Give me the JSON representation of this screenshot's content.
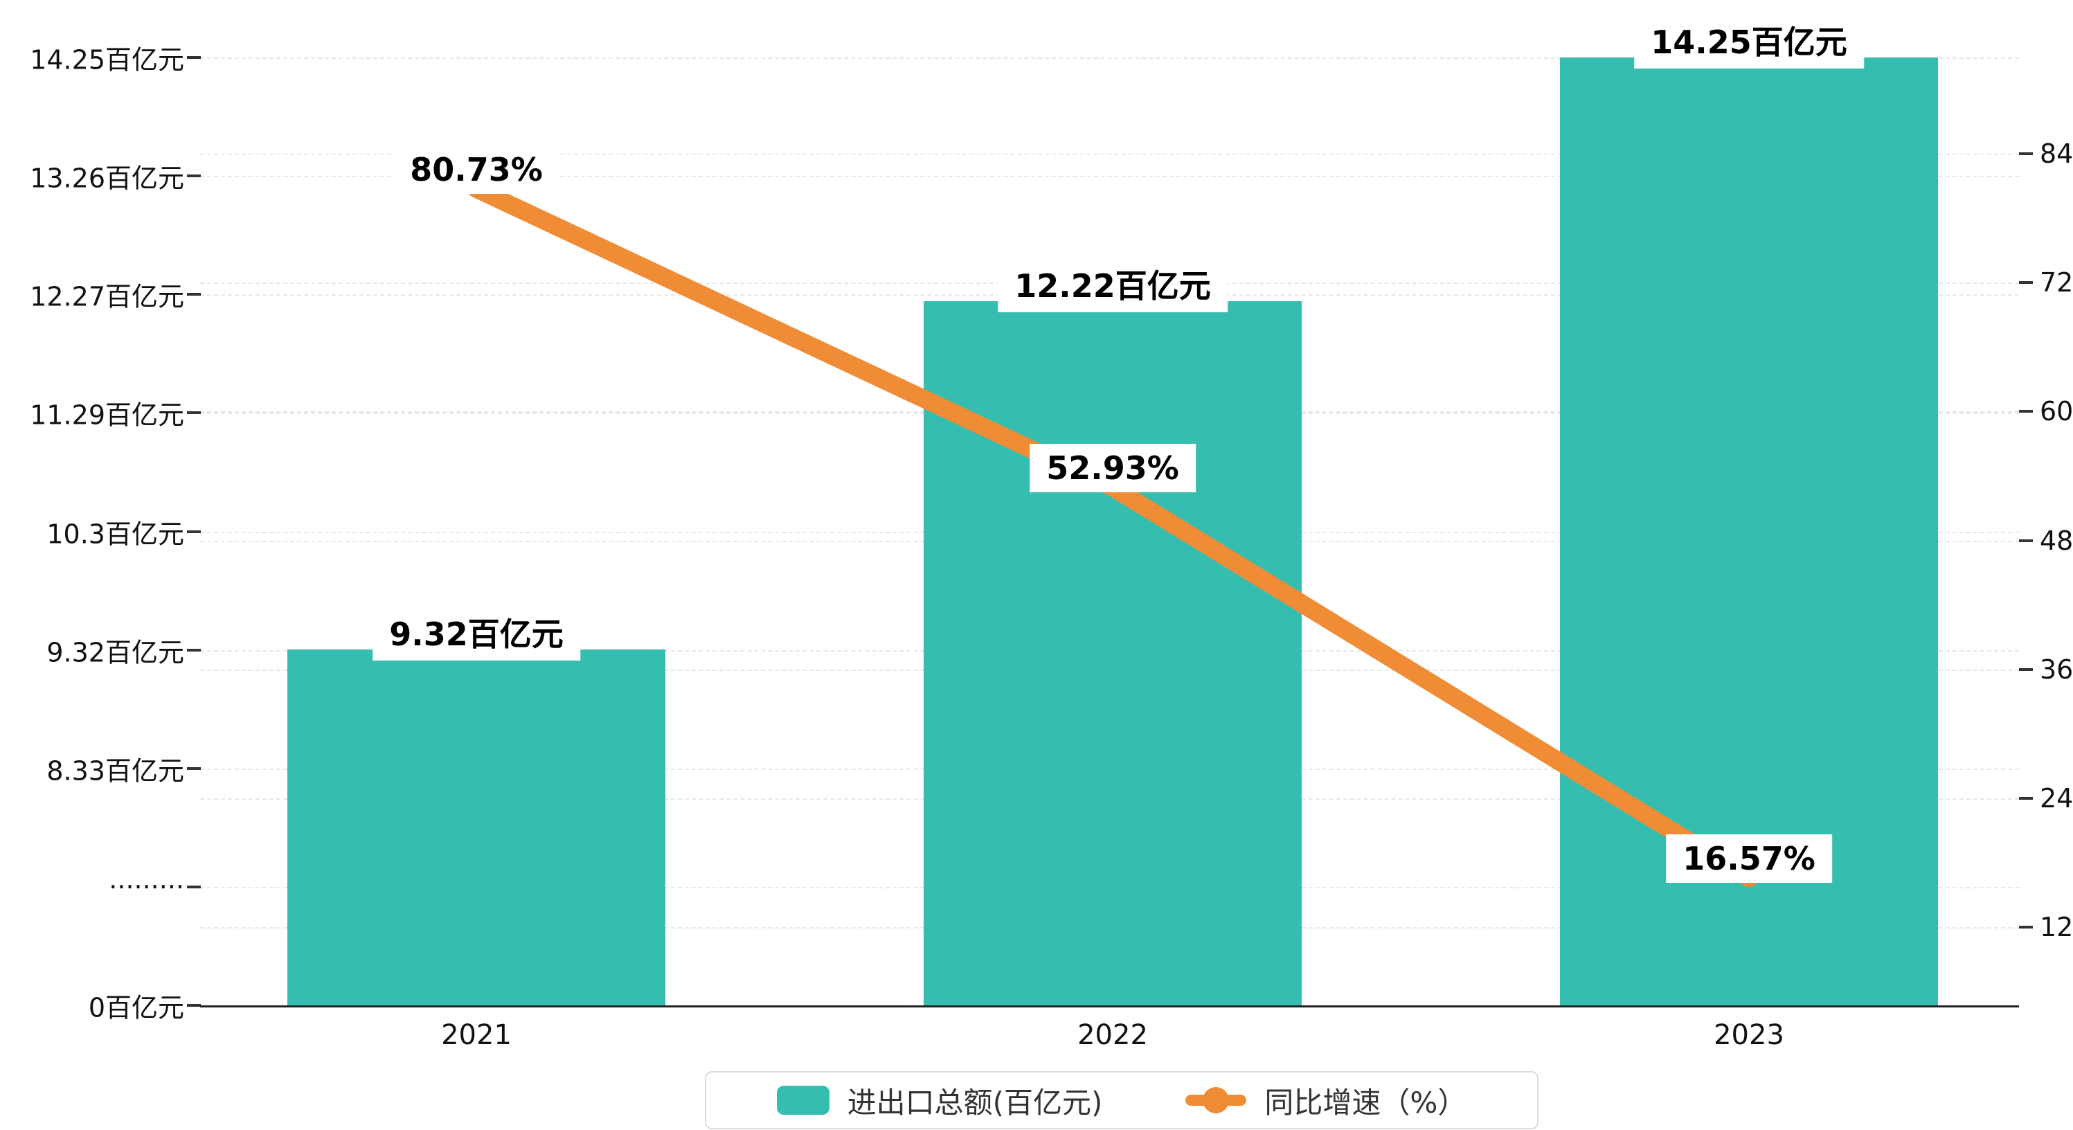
{
  "chart_data": {
    "type": "bar",
    "subtype": "bar-line-combo",
    "title": "",
    "categories": [
      "2021",
      "2022",
      "2023"
    ],
    "series": [
      {
        "name": "进出口总额(百亿元)",
        "type": "bar",
        "axis": "left",
        "color": "#35bdb0",
        "values": [
          9.32,
          12.22,
          14.25
        ],
        "data_labels": [
          "9.32百亿元",
          "12.22百亿元",
          "14.25百亿元"
        ]
      },
      {
        "name": "同比增速（%）",
        "type": "line",
        "axis": "right",
        "color": "#ef8c35",
        "values": [
          80.73,
          52.93,
          16.57
        ],
        "data_labels": [
          "80.73%",
          "52.93%",
          "16.57%"
        ]
      }
    ],
    "left_axis": {
      "tick_labels": [
        "14.25百亿元",
        "13.26百亿元",
        "12.27百亿元",
        "11.29百亿元",
        "10.3百亿元",
        "9.32百亿元",
        "8.33百亿元",
        "·········",
        "0百亿元"
      ],
      "tick_values": [
        14.25,
        13.26,
        12.27,
        11.29,
        10.3,
        9.32,
        8.33,
        null,
        0
      ],
      "axis_break": true
    },
    "right_axis": {
      "tick_labels": [
        "84",
        "72",
        "60",
        "48",
        "36",
        "24",
        "12"
      ],
      "tick_values": [
        84,
        72,
        60,
        48,
        36,
        24,
        12
      ]
    },
    "grid": "dashed-horizontal",
    "legend_position": "bottom-center",
    "colors": {
      "bar": "#35bdb0",
      "line": "#ef8c35",
      "grid": "#e8e8e8",
      "axis": "#222222",
      "text": "#111111",
      "label_background": "#ffffff",
      "background": "#ffffff"
    }
  }
}
